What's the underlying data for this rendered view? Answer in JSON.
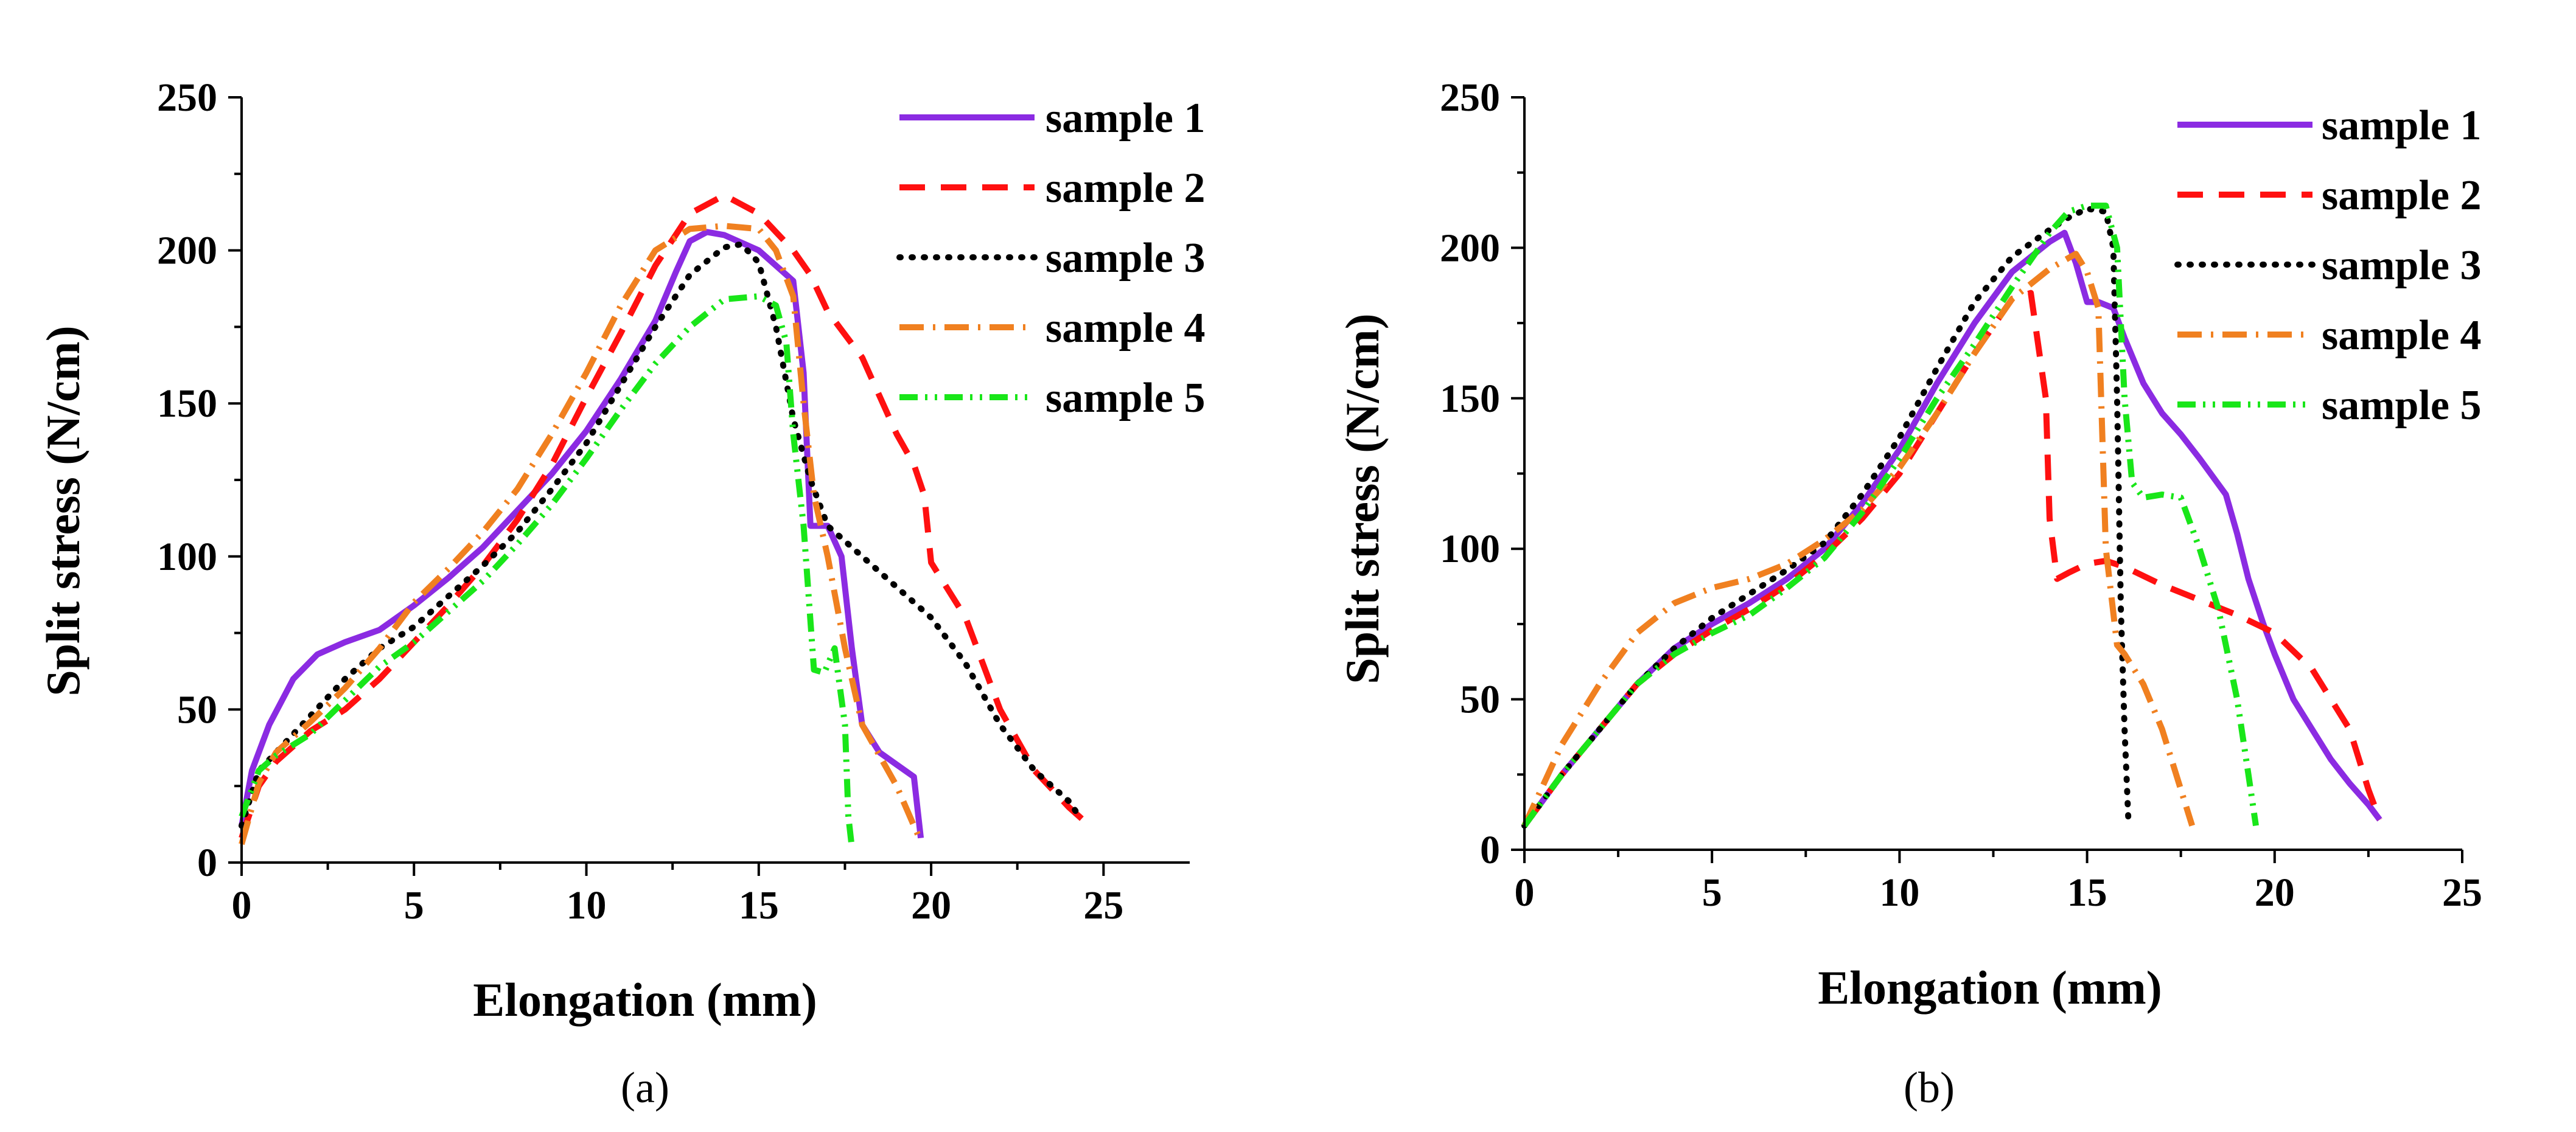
{
  "chart_data": [
    {
      "id": "a",
      "type": "line",
      "caption": "(a)",
      "xlabel": "Elongation (mm)",
      "ylabel": "Split stress (N/cm)",
      "xlim": [
        0,
        27.5
      ],
      "ylim": [
        0,
        250
      ],
      "xticks": [
        0,
        5,
        10,
        15,
        20,
        25
      ],
      "yticks": [
        0,
        50,
        100,
        150,
        200,
        250
      ],
      "legend_position": "top-right",
      "series": [
        {
          "name": "sample 1",
          "color": "#8B2BE2",
          "dash": "solid",
          "x": [
            0,
            0.3,
            0.8,
            1.5,
            2.2,
            3.0,
            4.0,
            5.0,
            6.0,
            7.0,
            8.0,
            9.0,
            10.0,
            11.0,
            12.0,
            12.6,
            13.0,
            13.5,
            14.0,
            15.0,
            16.0,
            16.3,
            16.5,
            16.8,
            17.0,
            17.4,
            17.7,
            18.0,
            18.5,
            19.0,
            19.5,
            19.7
          ],
          "y": [
            12,
            30,
            45,
            60,
            68,
            72,
            76,
            84,
            93,
            103,
            115,
            127,
            141,
            158,
            177,
            193,
            203,
            206,
            205,
            200,
            190,
            160,
            110,
            110,
            110,
            100,
            70,
            45,
            36,
            32,
            28,
            8
          ]
        },
        {
          "name": "sample 2",
          "color": "#FF1010",
          "dash": "long-dash",
          "x": [
            0,
            0.5,
            1.0,
            2.0,
            3.0,
            4.0,
            5.0,
            6.0,
            7.0,
            8.0,
            9.0,
            10.0,
            11.0,
            12.0,
            13.0,
            14.0,
            14.5,
            15.0,
            15.5,
            16.0,
            16.5,
            17.0,
            18.0,
            19.0,
            19.5,
            19.8,
            20.0,
            21.0,
            22.0,
            23.0,
            24.0,
            24.5
          ],
          "y": [
            8,
            25,
            33,
            43,
            50,
            60,
            72,
            84,
            97,
            112,
            130,
            152,
            173,
            195,
            212,
            218,
            215,
            212,
            206,
            200,
            192,
            180,
            165,
            140,
            130,
            120,
            98,
            80,
            50,
            30,
            18,
            13
          ]
        },
        {
          "name": "sample 3",
          "color": "#000000",
          "dash": "dot",
          "x": [
            0,
            0.5,
            1.0,
            2.0,
            3.0,
            4.0,
            5.0,
            6.0,
            7.0,
            8.0,
            9.0,
            10.0,
            11.0,
            12.0,
            13.0,
            14.0,
            14.5,
            15.0,
            15.5,
            16.0,
            16.5,
            17.0,
            18.0,
            19.0,
            20.0,
            21.0,
            22.0,
            23.0,
            24.0,
            24.3
          ],
          "y": [
            12,
            30,
            36,
            48,
            60,
            70,
            77,
            87,
            97,
            108,
            122,
            137,
            156,
            175,
            192,
            201,
            202,
            196,
            175,
            145,
            125,
            110,
            100,
            90,
            80,
            65,
            45,
            30,
            20,
            15
          ]
        },
        {
          "name": "sample 4",
          "color": "#F08020",
          "dash": "dash-dot",
          "x": [
            0,
            0.5,
            1.0,
            2.0,
            3.0,
            4.0,
            5.0,
            6.0,
            7.0,
            8.0,
            9.0,
            10.0,
            11.0,
            12.0,
            13.0,
            14.0,
            15.0,
            15.5,
            16.0,
            16.3,
            16.6,
            17.0,
            17.5,
            18.0,
            18.5,
            19.0,
            19.5,
            19.7
          ],
          "y": [
            6,
            26,
            36,
            46,
            57,
            70,
            85,
            96,
            108,
            122,
            140,
            160,
            182,
            200,
            207,
            208,
            207,
            200,
            185,
            150,
            120,
            100,
            70,
            45,
            35,
            25,
            12,
            7
          ]
        },
        {
          "name": "sample 5",
          "color": "#19E619",
          "dash": "dash-dot-dot",
          "x": [
            0,
            0.5,
            1.0,
            2.0,
            3.0,
            4.0,
            5.0,
            6.0,
            7.0,
            8.0,
            9.0,
            10.0,
            11.0,
            12.0,
            13.0,
            14.0,
            15.0,
            15.5,
            15.8,
            16.0,
            16.3,
            16.6,
            16.9,
            17.2,
            17.5,
            17.6,
            17.7
          ],
          "y": [
            15,
            30,
            35,
            42,
            53,
            64,
            72,
            82,
            92,
            104,
            117,
            132,
            148,
            163,
            175,
            184,
            185,
            182,
            170,
            140,
            110,
            63,
            62,
            70,
            45,
            15,
            5
          ]
        }
      ]
    },
    {
      "id": "b",
      "type": "line",
      "caption": "(b)",
      "xlabel": "Elongation (mm)",
      "ylabel": "Split stress (N/cm)",
      "xlim": [
        0,
        25
      ],
      "ylim": [
        0,
        250
      ],
      "xticks": [
        0,
        5,
        10,
        15,
        20,
        25
      ],
      "yticks": [
        0,
        50,
        100,
        150,
        200,
        250
      ],
      "legend_position": "top-right",
      "series": [
        {
          "name": "sample 1",
          "color": "#8B2BE2",
          "dash": "solid",
          "x": [
            0,
            1,
            2,
            3,
            4,
            5,
            6,
            7,
            8,
            9,
            10,
            11,
            12,
            13,
            14,
            14.4,
            14.7,
            15.0,
            15.3,
            15.7,
            16.0,
            16.5,
            17.0,
            17.5,
            18.0,
            18.7,
            19.0,
            19.3,
            19.7,
            20.0,
            20.5,
            21.0,
            21.5,
            22.0,
            22.5,
            22.8
          ],
          "y": [
            8,
            25,
            40,
            55,
            67,
            75,
            82,
            90,
            100,
            115,
            133,
            155,
            175,
            192,
            202,
            205,
            195,
            182,
            182,
            180,
            170,
            155,
            145,
            138,
            130,
            118,
            105,
            90,
            75,
            65,
            50,
            40,
            30,
            22,
            15,
            10
          ]
        },
        {
          "name": "sample 2",
          "color": "#FF1010",
          "dash": "long-dash",
          "x": [
            0,
            1,
            2,
            3,
            4,
            5,
            6,
            7,
            8,
            9,
            10,
            11,
            12,
            13,
            13.5,
            13.9,
            14.0,
            14.2,
            14.5,
            15.0,
            15.5,
            16.0,
            17.0,
            18.0,
            19.0,
            20.0,
            21.0,
            22.0,
            22.5,
            22.8
          ],
          "y": [
            8,
            25,
            40,
            55,
            65,
            73,
            80,
            88,
            98,
            110,
            125,
            145,
            165,
            183,
            185,
            150,
            110,
            90,
            92,
            95,
            96,
            94,
            88,
            83,
            78,
            72,
            60,
            40,
            20,
            10
          ]
        },
        {
          "name": "sample 3",
          "color": "#000000",
          "dash": "dot",
          "x": [
            0,
            1,
            2,
            3,
            4,
            5,
            6,
            7,
            8,
            9,
            10,
            11,
            12,
            13,
            14,
            14.5,
            15.0,
            15.5,
            15.7,
            15.8,
            15.9,
            16.0,
            16.1
          ],
          "y": [
            8,
            25,
            40,
            55,
            67,
            77,
            85,
            93,
            102,
            118,
            137,
            160,
            182,
            197,
            206,
            210,
            213,
            212,
            200,
            150,
            80,
            40,
            10
          ]
        },
        {
          "name": "sample 4",
          "color": "#F08020",
          "dash": "dash-dot",
          "x": [
            0,
            1,
            2,
            3,
            4,
            5,
            6,
            7,
            8,
            9,
            10,
            11,
            12,
            13,
            14,
            14.7,
            15.0,
            15.3,
            15.5,
            15.8,
            16.0,
            16.5,
            17.0,
            17.5,
            17.8
          ],
          "y": [
            8,
            35,
            55,
            72,
            82,
            87,
            90,
            95,
            103,
            113,
            127,
            145,
            165,
            183,
            193,
            198,
            192,
            180,
            100,
            68,
            65,
            55,
            40,
            20,
            8
          ]
        },
        {
          "name": "sample 5",
          "color": "#19E619",
          "dash": "dash-dot-dot",
          "x": [
            0,
            1,
            2,
            3,
            4,
            5,
            6,
            7,
            8,
            9,
            10,
            11,
            12,
            13,
            14,
            14.5,
            15.0,
            15.5,
            15.8,
            16.0,
            16.2,
            16.5,
            17.0,
            17.5,
            18.0,
            18.5,
            19.0,
            19.3,
            19.5
          ],
          "y": [
            8,
            25,
            40,
            55,
            65,
            72,
            78,
            87,
            97,
            112,
            130,
            150,
            168,
            187,
            205,
            212,
            214,
            214,
            200,
            150,
            122,
            117,
            118,
            117,
            100,
            80,
            50,
            25,
            8
          ]
        }
      ]
    }
  ]
}
